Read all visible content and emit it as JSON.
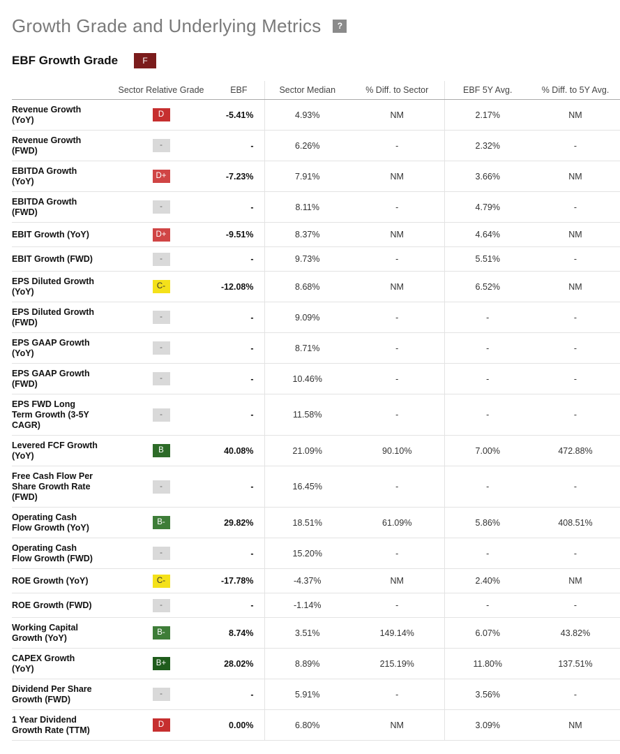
{
  "title": "Growth Grade and Underlying Metrics",
  "help_label": "?",
  "grade_title": "EBF Growth Grade",
  "overall_grade": "F",
  "columns": [
    "",
    "Sector Relative Grade",
    "EBF",
    "Sector Median",
    "% Diff. to Sector",
    "EBF 5Y Avg.",
    "% Diff. to 5Y Avg."
  ],
  "grade_colors": {
    "D": "#c62f2f",
    "D+": "#d04545",
    "C-": "#f4e11a",
    "B": "#2d6b28",
    "B-": "#3e7d38",
    "B+": "#1f5c1c",
    "-": "#d9d9d9",
    "F": "#7b1c1c"
  },
  "rows": [
    {
      "metric": [
        "Revenue Growth",
        "(YoY)"
      ],
      "grade": "D",
      "ebf": "-5.41%",
      "median": "4.93%",
      "diff": "NM",
      "avg5y": "2.17%",
      "diff5y": "NM",
      "h": "h2"
    },
    {
      "metric": [
        "Revenue Growth",
        "(FWD)"
      ],
      "grade": "-",
      "ebf": "-",
      "median": "6.26%",
      "diff": "-",
      "avg5y": "2.32%",
      "diff5y": "-",
      "h": "h2"
    },
    {
      "metric": [
        "EBITDA Growth",
        "(YoY)"
      ],
      "grade": "D+",
      "ebf": "-7.23%",
      "median": "7.91%",
      "diff": "NM",
      "avg5y": "3.66%",
      "diff5y": "NM",
      "h": "h2"
    },
    {
      "metric": [
        "EBITDA Growth",
        "(FWD)"
      ],
      "grade": "-",
      "ebf": "-",
      "median": "8.11%",
      "diff": "-",
      "avg5y": "4.79%",
      "diff5y": "-",
      "h": "h2"
    },
    {
      "metric": [
        "EBIT Growth (YoY)"
      ],
      "grade": "D+",
      "ebf": "-9.51%",
      "median": "8.37%",
      "diff": "NM",
      "avg5y": "4.64%",
      "diff5y": "NM",
      "h": "h1"
    },
    {
      "metric": [
        "EBIT Growth (FWD)"
      ],
      "grade": "-",
      "ebf": "-",
      "median": "9.73%",
      "diff": "-",
      "avg5y": "5.51%",
      "diff5y": "-",
      "h": "h1"
    },
    {
      "metric": [
        "EPS Diluted Growth",
        "(YoY)"
      ],
      "grade": "C-",
      "ebf": "-12.08%",
      "median": "8.68%",
      "diff": "NM",
      "avg5y": "6.52%",
      "diff5y": "NM",
      "h": "h2"
    },
    {
      "metric": [
        "EPS Diluted Growth",
        "(FWD)"
      ],
      "grade": "-",
      "ebf": "-",
      "median": "9.09%",
      "diff": "-",
      "avg5y": "-",
      "diff5y": "-",
      "h": "h2"
    },
    {
      "metric": [
        "EPS GAAP Growth",
        "(YoY)"
      ],
      "grade": "-",
      "ebf": "-",
      "median": "8.71%",
      "diff": "-",
      "avg5y": "-",
      "diff5y": "-",
      "h": "h2"
    },
    {
      "metric": [
        "EPS GAAP Growth",
        "(FWD)"
      ],
      "grade": "-",
      "ebf": "-",
      "median": "10.46%",
      "diff": "-",
      "avg5y": "-",
      "diff5y": "-",
      "h": "h2"
    },
    {
      "metric": [
        "EPS FWD Long",
        "Term Growth (3-5Y",
        "CAGR)"
      ],
      "grade": "-",
      "ebf": "-",
      "median": "11.58%",
      "diff": "-",
      "avg5y": "-",
      "diff5y": "-",
      "h": "h3"
    },
    {
      "metric": [
        "Levered FCF Growth",
        "(YoY)"
      ],
      "grade": "B",
      "ebf": "40.08%",
      "median": "21.09%",
      "diff": "90.10%",
      "avg5y": "7.00%",
      "diff5y": "472.88%",
      "h": "h2"
    },
    {
      "metric": [
        "Free Cash Flow Per",
        "Share Growth Rate",
        "(FWD)"
      ],
      "grade": "-",
      "ebf": "-",
      "median": "16.45%",
      "diff": "-",
      "avg5y": "-",
      "diff5y": "-",
      "h": "h3"
    },
    {
      "metric": [
        "Operating Cash",
        "Flow Growth (YoY)"
      ],
      "grade": "B-",
      "ebf": "29.82%",
      "median": "18.51%",
      "diff": "61.09%",
      "avg5y": "5.86%",
      "diff5y": "408.51%",
      "h": "h2"
    },
    {
      "metric": [
        "Operating Cash",
        "Flow Growth (FWD)"
      ],
      "grade": "-",
      "ebf": "-",
      "median": "15.20%",
      "diff": "-",
      "avg5y": "-",
      "diff5y": "-",
      "h": "h2"
    },
    {
      "metric": [
        "ROE Growth (YoY)"
      ],
      "grade": "C-",
      "ebf": "-17.78%",
      "median": "-4.37%",
      "diff": "NM",
      "avg5y": "2.40%",
      "diff5y": "NM",
      "h": "h1"
    },
    {
      "metric": [
        "ROE Growth (FWD)"
      ],
      "grade": "-",
      "ebf": "-",
      "median": "-1.14%",
      "diff": "-",
      "avg5y": "-",
      "diff5y": "-",
      "h": "h1"
    },
    {
      "metric": [
        "Working Capital",
        "Growth (YoY)"
      ],
      "grade": "B-",
      "ebf": "8.74%",
      "median": "3.51%",
      "diff": "149.14%",
      "avg5y": "6.07%",
      "diff5y": "43.82%",
      "h": "h2"
    },
    {
      "metric": [
        "CAPEX Growth",
        "(YoY)"
      ],
      "grade": "B+",
      "ebf": "28.02%",
      "median": "8.89%",
      "diff": "215.19%",
      "avg5y": "11.80%",
      "diff5y": "137.51%",
      "h": "h2"
    },
    {
      "metric": [
        "Dividend Per Share",
        "Growth (FWD)"
      ],
      "grade": "-",
      "ebf": "-",
      "median": "5.91%",
      "diff": "-",
      "avg5y": "3.56%",
      "diff5y": "-",
      "h": "h2"
    },
    {
      "metric": [
        "1 Year Dividend",
        "Growth Rate (TTM)"
      ],
      "grade": "D",
      "ebf": "0.00%",
      "median": "6.80%",
      "diff": "NM",
      "avg5y": "3.09%",
      "diff5y": "NM",
      "h": "h2"
    }
  ]
}
